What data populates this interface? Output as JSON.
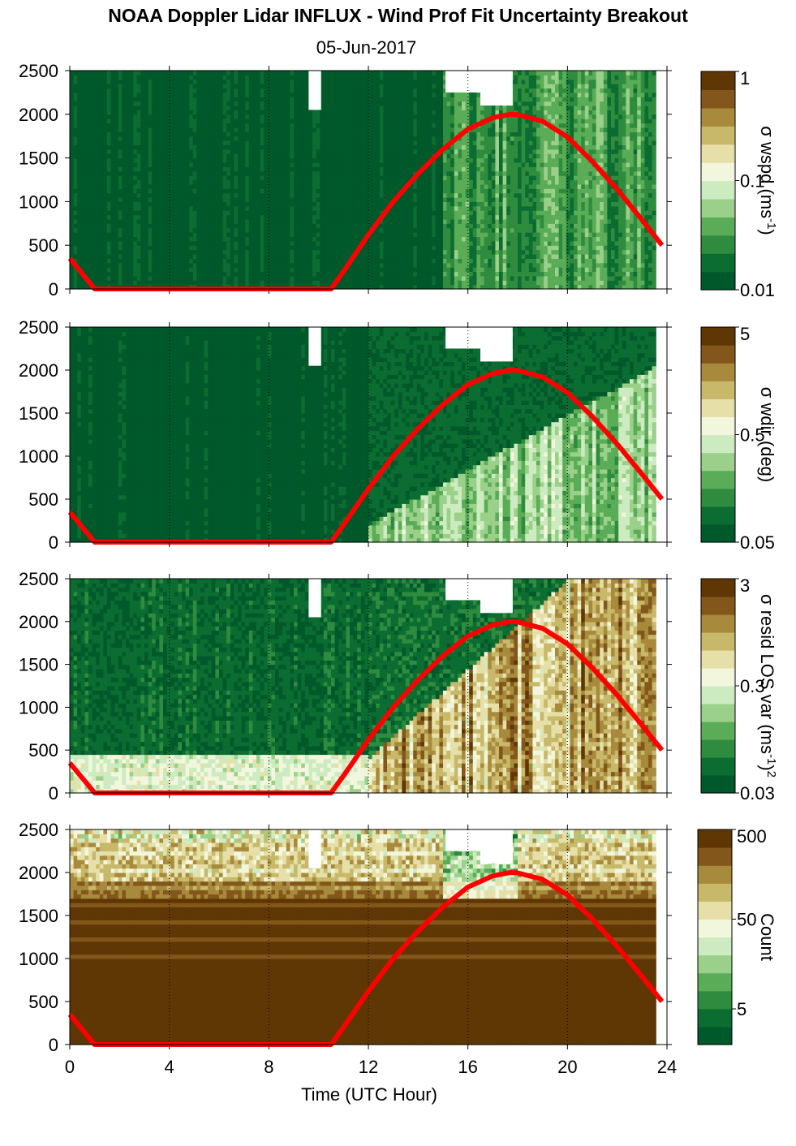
{
  "figure": {
    "title": "NOAA Doppler Lidar INFLUX - Wind Prof Fit Uncertainty Breakout",
    "date": "05-Jun-2017",
    "xlabel": "Time (UTC Hour)"
  },
  "palette": {
    "colors": [
      "#00592a",
      "#0b6d31",
      "#2f8c3e",
      "#5aac57",
      "#9bd08a",
      "#cdebc0",
      "#f1f6dc",
      "#e6e0a8",
      "#c8b86a",
      "#a88a3c",
      "#83571b",
      "#5f3705"
    ],
    "line_color": "#ff0000",
    "missing_color": "#ffffff"
  },
  "chart_data": [
    {
      "type": "heatmap",
      "panel": "wspd",
      "xlim": [
        0,
        24
      ],
      "ylim": [
        0,
        2500
      ],
      "xticks": [
        0,
        4,
        8,
        12,
        16,
        20,
        24
      ],
      "yticks": [
        0,
        500,
        1000,
        1500,
        2000,
        2500
      ],
      "vertical_gridlines_x": [
        4,
        8,
        12,
        16,
        20,
        24
      ],
      "colorbar": {
        "label": "σ wspd (ms",
        "label_sup": "-1",
        "label_end": ")",
        "ticks": [
          "0.01",
          "0.1",
          "1"
        ],
        "scale": "log",
        "range": [
          0.01,
          1
        ]
      },
      "missing_regions": [
        {
          "x": [
            9.6,
            10.1
          ],
          "y": [
            2050,
            2500
          ]
        },
        {
          "x": [
            15.1,
            16.5
          ],
          "y": [
            2250,
            2500
          ]
        },
        {
          "x": [
            16.5,
            17.8
          ],
          "y": [
            2100,
            2500
          ]
        }
      ],
      "pattern": "uniformly low (~0.01-0.02) before 15 UTC; higher (~0.02-0.1) after 15.5 UTC with vertical streaks"
    },
    {
      "type": "heatmap",
      "panel": "wdir",
      "xlim": [
        0,
        24
      ],
      "ylim": [
        0,
        2500
      ],
      "xticks": [
        0,
        4,
        8,
        12,
        16,
        20,
        24
      ],
      "yticks": [
        0,
        500,
        1000,
        1500,
        2000,
        2500
      ],
      "vertical_gridlines_x": [
        4,
        8,
        12,
        16,
        20,
        24
      ],
      "colorbar": {
        "label": "σ wdir (deg)",
        "label_sup": "",
        "label_end": "",
        "ticks": [
          "0.05",
          "0.5",
          "5"
        ],
        "scale": "log",
        "range": [
          0.05,
          5
        ]
      },
      "missing_regions": [
        {
          "x": [
            9.6,
            10.1
          ],
          "y": [
            2050,
            2500
          ]
        },
        {
          "x": [
            15.1,
            16.5
          ],
          "y": [
            2250,
            2500
          ]
        },
        {
          "x": [
            16.5,
            17.8
          ],
          "y": [
            2100,
            2500
          ]
        }
      ],
      "pattern": "low (~0.05-0.1) before 12 UTC; rising to ~0.2-0.6 in boundary layer after 12 UTC"
    },
    {
      "type": "heatmap",
      "panel": "resid",
      "xlim": [
        0,
        24
      ],
      "ylim": [
        0,
        2500
      ],
      "xticks": [
        0,
        4,
        8,
        12,
        16,
        20,
        24
      ],
      "yticks": [
        0,
        500,
        1000,
        1500,
        2000,
        2500
      ],
      "vertical_gridlines_x": [
        4,
        8,
        12,
        16,
        20,
        24
      ],
      "colorbar": {
        "label": "σ resid LOS var (ms",
        "label_sup": "-1",
        "label_end": ")",
        "label_sup2": "2",
        "ticks": [
          "0.03",
          "0.3",
          "3"
        ],
        "scale": "log",
        "range": [
          0.03,
          3
        ]
      },
      "missing_regions": [
        {
          "x": [
            9.6,
            10.1
          ],
          "y": [
            2050,
            2500
          ]
        },
        {
          "x": [
            15.1,
            16.5
          ],
          "y": [
            2250,
            2500
          ]
        },
        {
          "x": [
            16.5,
            17.8
          ],
          "y": [
            2100,
            2500
          ]
        }
      ],
      "pattern": "low (~0.05) aloft before 15 UTC; ~0.3-1 near surface at night; ~0.5-3 through deep boundary layer after 16 UTC"
    },
    {
      "type": "heatmap",
      "panel": "count",
      "xlim": [
        0,
        24
      ],
      "ylim": [
        0,
        2500
      ],
      "xticks": [
        0,
        4,
        8,
        12,
        16,
        20,
        24
      ],
      "yticks": [
        0,
        500,
        1000,
        1500,
        2000,
        2500
      ],
      "vertical_gridlines_x": [
        4,
        8,
        12,
        16,
        20,
        24
      ],
      "colorbar": {
        "label": "Count",
        "label_sup": "",
        "label_end": "",
        "ticks": [
          "5",
          "50",
          "500"
        ],
        "scale": "log",
        "range": [
          2,
          500
        ]
      },
      "missing_regions": [
        {
          "x": [
            9.6,
            10.1
          ],
          "y": [
            2050,
            2500
          ]
        },
        {
          "x": [
            15.1,
            16.5
          ],
          "y": [
            2250,
            2500
          ]
        },
        {
          "x": [
            16.5,
            17.8
          ],
          "y": [
            2100,
            2500
          ]
        }
      ],
      "pattern": "high counts (~300-500) below ~1800 m; lower (~50-200) near top and in afternoon"
    }
  ],
  "overlay_line": {
    "x": [
      0,
      1,
      2,
      3,
      4,
      5,
      6,
      7,
      8,
      9,
      10,
      10.5,
      11,
      12,
      13,
      14,
      15,
      16,
      17,
      17.7,
      18,
      19,
      20,
      21,
      22,
      23,
      23.8
    ],
    "y": [
      350,
      0,
      0,
      0,
      0,
      0,
      0,
      0,
      0,
      0,
      0,
      0,
      200,
      620,
      1000,
      1320,
      1600,
      1830,
      1960,
      2000,
      1995,
      1920,
      1740,
      1460,
      1140,
      790,
      500
    ]
  }
}
